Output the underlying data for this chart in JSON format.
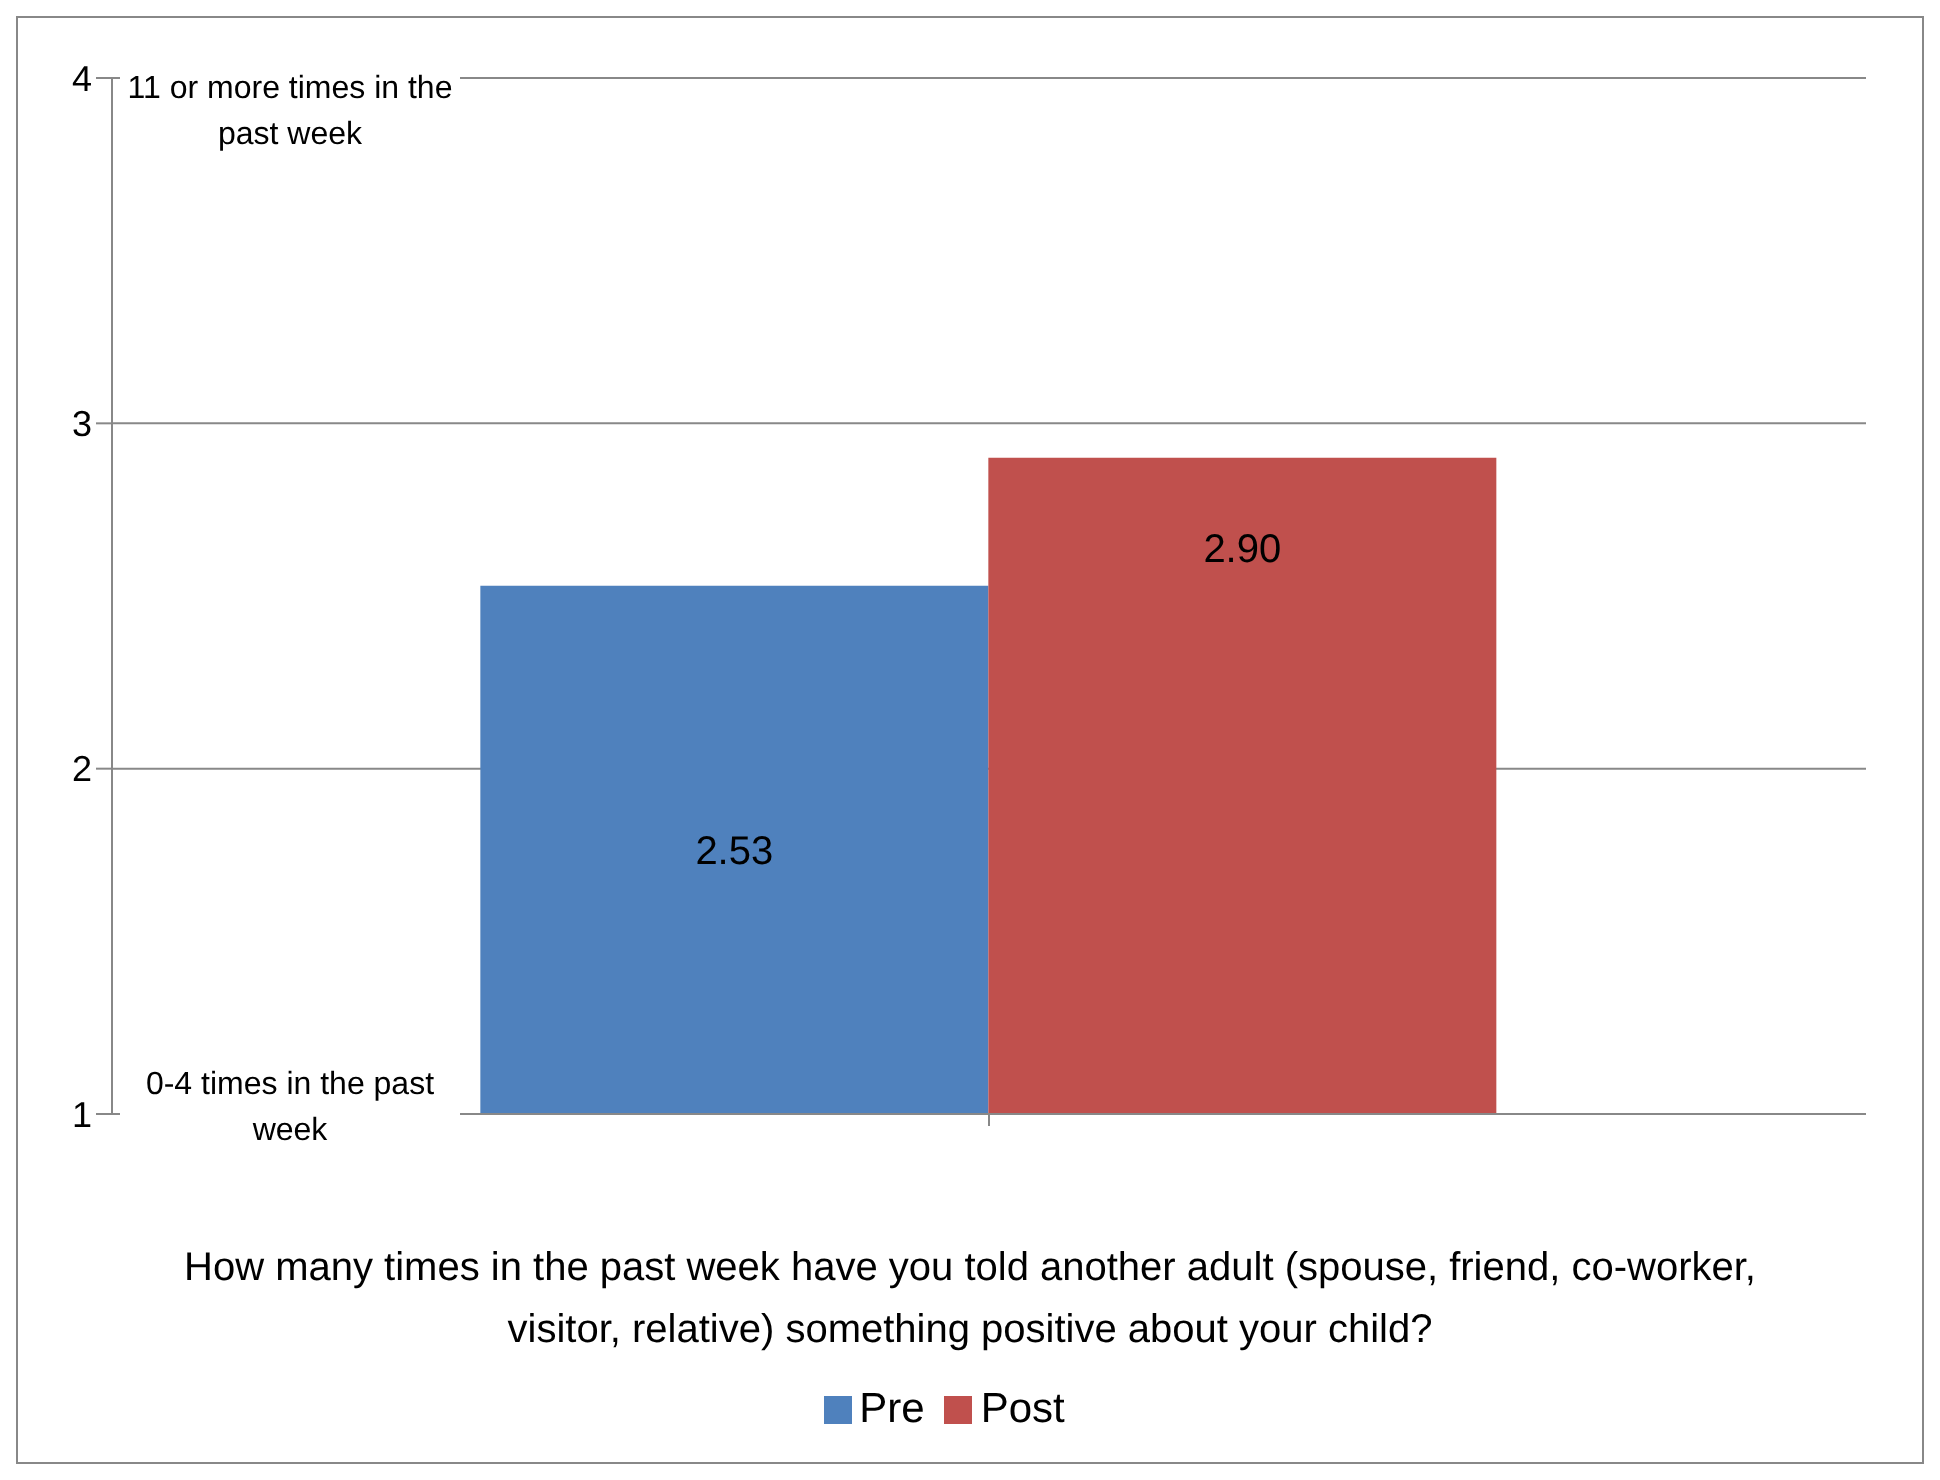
{
  "chart_data": {
    "type": "bar",
    "xlabel": "How many times in the past week have you told another adult (spouse, friend, co-worker, visitor, relative) something positive about your child?",
    "categories": [
      null
    ],
    "series": [
      {
        "name": "Pre",
        "color": "#4f81bd",
        "values": [
          2.53
        ],
        "value_labels": [
          "2.53"
        ]
      },
      {
        "name": "Post",
        "color": "#c0504d",
        "values": [
          2.9
        ],
        "value_labels": [
          "2.90"
        ]
      }
    ],
    "ylim": [
      1,
      4
    ],
    "yticks": [
      1,
      2,
      3,
      4
    ],
    "grid": "y",
    "legend": "bottom",
    "annotations": [
      "11 or more times in the past week",
      "0-4 times in the past week"
    ]
  }
}
